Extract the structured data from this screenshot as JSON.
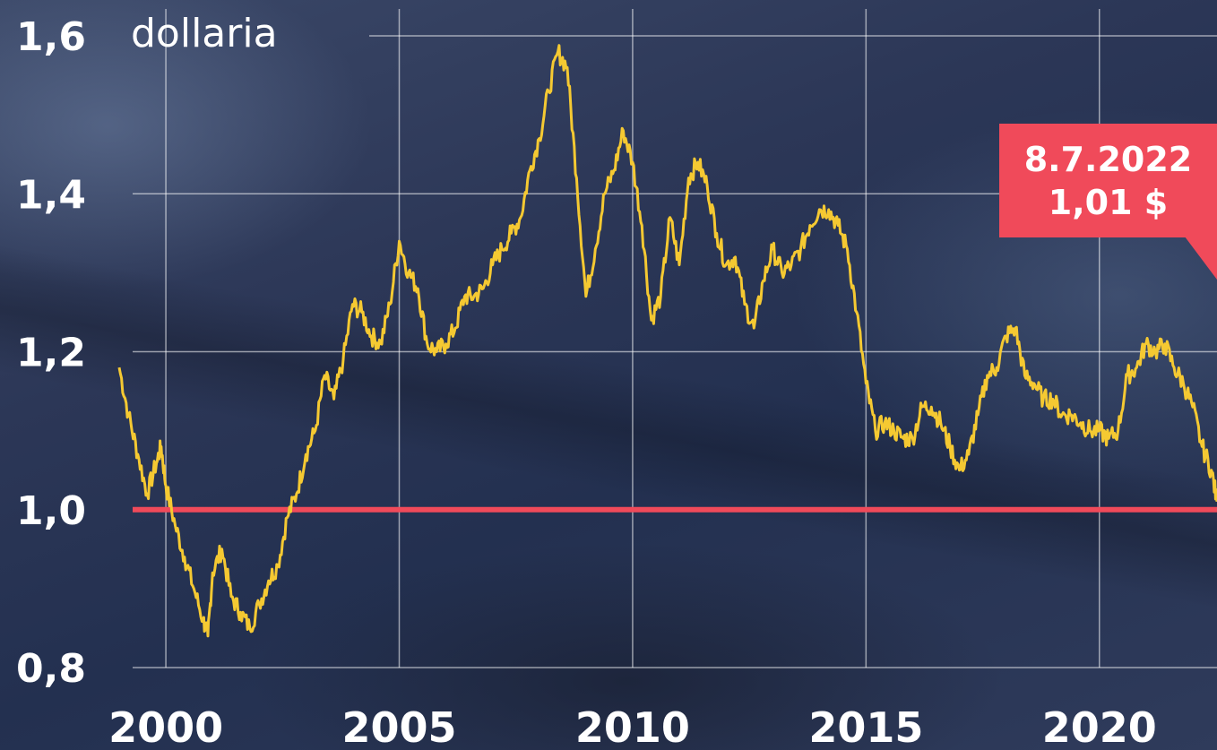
{
  "chart_data": {
    "type": "line",
    "y_unit_label": "dollaria",
    "yticks": [
      {
        "value": 0.8,
        "label": "0,8"
      },
      {
        "value": 1.0,
        "label": "1,0"
      },
      {
        "value": 1.2,
        "label": "1,2"
      },
      {
        "value": 1.4,
        "label": "1,4"
      },
      {
        "value": 1.6,
        "label": "1,6"
      }
    ],
    "xticks": [
      {
        "value": 2000,
        "label": "2000"
      },
      {
        "value": 2005,
        "label": "2005"
      },
      {
        "value": 2010,
        "label": "2010"
      },
      {
        "value": 2015,
        "label": "2015"
      },
      {
        "value": 2020,
        "label": "2020"
      }
    ],
    "xlim": [
      1999.0,
      2022.52
    ],
    "ylim": [
      0.8,
      1.6
    ],
    "grid": true,
    "reference_line": {
      "value": 1.0
    },
    "series": [
      {
        "color": "#f5c932",
        "points": [
          [
            1999.0,
            1.18
          ],
          [
            1999.2,
            1.12
          ],
          [
            1999.4,
            1.07
          ],
          [
            1999.6,
            1.02
          ],
          [
            1999.8,
            1.06
          ],
          [
            1999.9,
            1.08
          ],
          [
            2000.0,
            1.03
          ],
          [
            2000.2,
            0.98
          ],
          [
            2000.4,
            0.94
          ],
          [
            2000.6,
            0.9
          ],
          [
            2000.8,
            0.86
          ],
          [
            2000.9,
            0.84
          ],
          [
            2001.0,
            0.92
          ],
          [
            2001.2,
            0.95
          ],
          [
            2001.4,
            0.89
          ],
          [
            2001.6,
            0.87
          ],
          [
            2001.8,
            0.85
          ],
          [
            2002.0,
            0.88
          ],
          [
            2002.2,
            0.91
          ],
          [
            2002.4,
            0.93
          ],
          [
            2002.6,
            0.99
          ],
          [
            2002.8,
            1.02
          ],
          [
            2003.0,
            1.07
          ],
          [
            2003.2,
            1.1
          ],
          [
            2003.4,
            1.17
          ],
          [
            2003.6,
            1.14
          ],
          [
            2003.8,
            1.19
          ],
          [
            2004.0,
            1.26
          ],
          [
            2004.2,
            1.25
          ],
          [
            2004.4,
            1.22
          ],
          [
            2004.6,
            1.21
          ],
          [
            2004.8,
            1.26
          ],
          [
            2005.0,
            1.34
          ],
          [
            2005.2,
            1.3
          ],
          [
            2005.4,
            1.28
          ],
          [
            2005.6,
            1.21
          ],
          [
            2005.8,
            1.2
          ],
          [
            2006.0,
            1.21
          ],
          [
            2006.2,
            1.23
          ],
          [
            2006.4,
            1.27
          ],
          [
            2006.6,
            1.27
          ],
          [
            2006.8,
            1.28
          ],
          [
            2007.0,
            1.31
          ],
          [
            2007.2,
            1.33
          ],
          [
            2007.4,
            1.35
          ],
          [
            2007.6,
            1.37
          ],
          [
            2007.8,
            1.43
          ],
          [
            2008.0,
            1.47
          ],
          [
            2008.2,
            1.53
          ],
          [
            2008.4,
            1.58
          ],
          [
            2008.6,
            1.56
          ],
          [
            2008.8,
            1.42
          ],
          [
            2009.0,
            1.27
          ],
          [
            2009.2,
            1.33
          ],
          [
            2009.4,
            1.4
          ],
          [
            2009.6,
            1.43
          ],
          [
            2009.8,
            1.48
          ],
          [
            2010.0,
            1.44
          ],
          [
            2010.2,
            1.36
          ],
          [
            2010.4,
            1.24
          ],
          [
            2010.6,
            1.27
          ],
          [
            2010.8,
            1.37
          ],
          [
            2011.0,
            1.31
          ],
          [
            2011.2,
            1.42
          ],
          [
            2011.4,
            1.44
          ],
          [
            2011.6,
            1.41
          ],
          [
            2011.8,
            1.35
          ],
          [
            2012.0,
            1.31
          ],
          [
            2012.2,
            1.32
          ],
          [
            2012.4,
            1.26
          ],
          [
            2012.6,
            1.23
          ],
          [
            2012.8,
            1.29
          ],
          [
            2013.0,
            1.33
          ],
          [
            2013.2,
            1.3
          ],
          [
            2013.4,
            1.31
          ],
          [
            2013.6,
            1.33
          ],
          [
            2013.8,
            1.36
          ],
          [
            2014.0,
            1.38
          ],
          [
            2014.2,
            1.38
          ],
          [
            2014.4,
            1.36
          ],
          [
            2014.6,
            1.33
          ],
          [
            2014.8,
            1.25
          ],
          [
            2015.0,
            1.16
          ],
          [
            2015.2,
            1.1
          ],
          [
            2015.4,
            1.11
          ],
          [
            2015.6,
            1.1
          ],
          [
            2015.8,
            1.09
          ],
          [
            2016.0,
            1.09
          ],
          [
            2016.2,
            1.13
          ],
          [
            2016.4,
            1.13
          ],
          [
            2016.6,
            1.11
          ],
          [
            2016.8,
            1.08
          ],
          [
            2017.0,
            1.05
          ],
          [
            2017.2,
            1.07
          ],
          [
            2017.4,
            1.12
          ],
          [
            2017.6,
            1.17
          ],
          [
            2017.8,
            1.18
          ],
          [
            2018.0,
            1.22
          ],
          [
            2018.2,
            1.23
          ],
          [
            2018.4,
            1.17
          ],
          [
            2018.6,
            1.16
          ],
          [
            2018.8,
            1.14
          ],
          [
            2019.0,
            1.14
          ],
          [
            2019.2,
            1.12
          ],
          [
            2019.4,
            1.12
          ],
          [
            2019.6,
            1.11
          ],
          [
            2019.8,
            1.1
          ],
          [
            2020.0,
            1.1
          ],
          [
            2020.2,
            1.09
          ],
          [
            2020.4,
            1.1
          ],
          [
            2020.6,
            1.17
          ],
          [
            2020.8,
            1.18
          ],
          [
            2021.0,
            1.21
          ],
          [
            2021.2,
            1.2
          ],
          [
            2021.4,
            1.21
          ],
          [
            2021.6,
            1.18
          ],
          [
            2021.8,
            1.16
          ],
          [
            2022.0,
            1.13
          ],
          [
            2022.2,
            1.08
          ],
          [
            2022.4,
            1.05
          ],
          [
            2022.52,
            1.01
          ]
        ]
      }
    ],
    "annotation": {
      "date": "8.7.2022",
      "value": "1,01 $",
      "x": 2022.52,
      "y": 1.01,
      "color": "#f04a5a"
    }
  }
}
